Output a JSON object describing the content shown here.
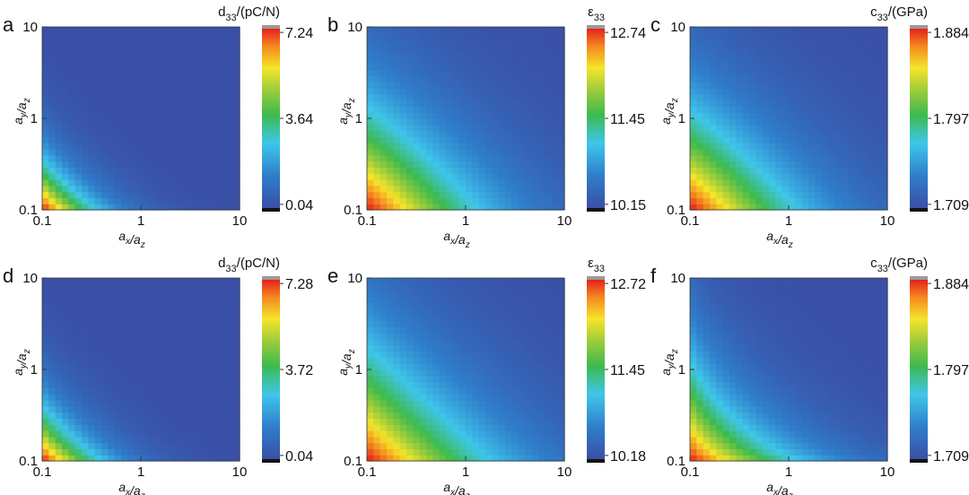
{
  "chart_data": [
    {
      "type": "heatmap",
      "panel": "a",
      "xlabel": "ax/az",
      "ylabel": "ay/az",
      "x_ticks": [
        "0.1",
        "1",
        "10"
      ],
      "y_ticks": [
        "0.1",
        "1",
        "10"
      ],
      "xlim": [
        0.1,
        10
      ],
      "ylim": [
        0.1,
        10
      ],
      "x_scale": "log",
      "y_scale": "log",
      "colorbar": {
        "label": "d33/(pC/N)",
        "max": "7.24",
        "mid": "3.64",
        "min": "0.04"
      },
      "peak_corner": "bottom-left",
      "shape": {
        "n": 0.9,
        "b": 0.58
      },
      "value_range": [
        0.04,
        7.24
      ]
    },
    {
      "type": "heatmap",
      "panel": "b",
      "xlabel": "ax/az",
      "ylabel": "ay/az",
      "x_ticks": [
        "0.1",
        "1",
        "10"
      ],
      "y_ticks": [
        "0.1",
        "1",
        "10"
      ],
      "xlim": [
        0.1,
        10
      ],
      "ylim": [
        0.1,
        10
      ],
      "x_scale": "log",
      "y_scale": "log",
      "colorbar": {
        "label": "ε33",
        "max": "12.74",
        "mid": "11.45",
        "min": "10.15"
      },
      "peak_corner": "bottom-left",
      "shape": {
        "n": 1.1,
        "b": 1.12
      },
      "value_range": [
        10.15,
        12.74
      ]
    },
    {
      "type": "heatmap",
      "panel": "c",
      "xlabel": "ax/az",
      "ylabel": "ay/az",
      "x_ticks": [
        "0.1",
        "1",
        "10"
      ],
      "y_ticks": [
        "0.1",
        "1",
        "10"
      ],
      "xlim": [
        0.1,
        10
      ],
      "ylim": [
        0.1,
        10
      ],
      "x_scale": "log",
      "y_scale": "log",
      "colorbar": {
        "label": "c33/(GPa)",
        "max": "1.884",
        "mid": "1.797",
        "min": "1.709"
      },
      "peak_corner": "bottom-left",
      "shape": {
        "n": 1.1,
        "b": 1.08
      },
      "value_range": [
        1.709,
        1.884
      ]
    },
    {
      "type": "heatmap",
      "panel": "d",
      "xlabel": "ax/az",
      "ylabel": "ay/az",
      "x_ticks": [
        "0.1",
        "1",
        "10"
      ],
      "y_ticks": [
        "0.1",
        "1",
        "10"
      ],
      "xlim": [
        0.1,
        10
      ],
      "ylim": [
        0.1,
        10
      ],
      "x_scale": "log",
      "y_scale": "log",
      "colorbar": {
        "label": "d33/(pC/N)",
        "max": "7.28",
        "mid": "3.72",
        "min": "0.04"
      },
      "peak_corner": "bottom-left",
      "shape": {
        "n": 0.9,
        "b": 0.62
      },
      "value_range": [
        0.04,
        7.28
      ]
    },
    {
      "type": "heatmap",
      "panel": "e",
      "xlabel": "ax/az",
      "ylabel": "ay/az",
      "x_ticks": [
        "0.1",
        "1",
        "10"
      ],
      "y_ticks": [
        "0.1",
        "1",
        "10"
      ],
      "xlim": [
        0.1,
        10
      ],
      "ylim": [
        0.1,
        10
      ],
      "x_scale": "log",
      "y_scale": "log",
      "colorbar": {
        "label": "ε33",
        "max": "12.72",
        "mid": "11.45",
        "min": "10.18"
      },
      "peak_corner": "bottom-left",
      "shape": {
        "n": 1.0,
        "b": 1.25
      },
      "value_range": [
        10.18,
        12.72
      ]
    },
    {
      "type": "heatmap",
      "panel": "f",
      "xlabel": "ax/az",
      "ylabel": "ay/az",
      "x_ticks": [
        "0.1",
        "1",
        "10"
      ],
      "y_ticks": [
        "0.1",
        "1",
        "10"
      ],
      "xlim": [
        0.1,
        10
      ],
      "ylim": [
        0.1,
        10
      ],
      "x_scale": "log",
      "y_scale": "log",
      "colorbar": {
        "label": "c33/(GPa)",
        "max": "1.884",
        "mid": "1.797",
        "min": "1.709"
      },
      "peak_corner": "bottom-left",
      "shape": {
        "n": 0.75,
        "b": 1.15
      },
      "value_range": [
        1.709,
        1.884
      ]
    }
  ]
}
